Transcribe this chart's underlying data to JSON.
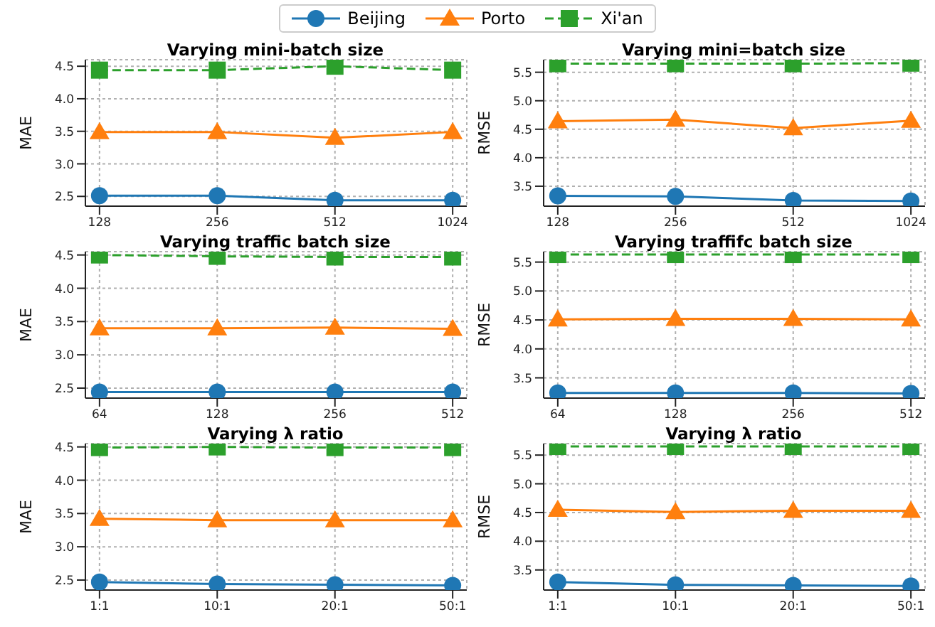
{
  "chart_data": [
    {
      "type": "line",
      "title": "Varying mini-batch size",
      "ylabel": "MAE",
      "categories": [
        "128",
        "256",
        "512",
        "1024"
      ],
      "ylim": [
        2.35,
        4.6
      ],
      "yticks": [
        2.5,
        {
          "value": 3,
          "label": "3.0"
        },
        3.5,
        {
          "value": 4,
          "label": "4.0"
        },
        4.5
      ],
      "grid": true,
      "legend": "top",
      "series": [
        {
          "name": "Beijing",
          "color": "#1f77b4",
          "marker": "circle",
          "line_style": "solid",
          "values": [
            2.51,
            2.51,
            2.44,
            2.44
          ]
        },
        {
          "name": "Porto",
          "color": "#ff7f0e",
          "marker": "triangle",
          "line_style": "solid",
          "values": [
            3.49,
            3.49,
            3.4,
            3.49
          ]
        },
        {
          "name": "Xi'an",
          "color": "#2ca02c",
          "marker": "square",
          "line_style": "dashed",
          "values": [
            4.44,
            4.44,
            4.5,
            4.44
          ]
        }
      ]
    },
    {
      "type": "line",
      "title": "Varying mini=batch size",
      "ylabel": "RMSE",
      "categories": [
        "128",
        "256",
        "512",
        "1024"
      ],
      "ylim": [
        3.15,
        5.72
      ],
      "yticks": [
        3.5,
        {
          "value": 4,
          "label": "4.0"
        },
        4.5,
        {
          "value": 5,
          "label": "5.0"
        },
        5.5
      ],
      "grid": true,
      "series": [
        {
          "color": "#1f77b4",
          "marker": "circle",
          "line_style": "solid",
          "values": [
            3.33,
            3.32,
            3.25,
            3.24
          ]
        },
        {
          "color": "#ff7f0e",
          "marker": "triangle",
          "line_style": "solid",
          "values": [
            4.64,
            4.67,
            4.52,
            4.65
          ]
        },
        {
          "color": "#2ca02c",
          "marker": "square",
          "line_style": "dashed",
          "values": [
            5.65,
            5.65,
            5.65,
            5.66
          ]
        }
      ]
    },
    {
      "type": "line",
      "title": "Varying traffic batch size",
      "ylabel": "MAE",
      "categories": [
        "64",
        "128",
        "256",
        "512"
      ],
      "ylim": [
        2.35,
        4.55
      ],
      "yticks": [
        2.5,
        {
          "value": 3,
          "label": "3.0"
        },
        3.5,
        {
          "value": 4,
          "label": "4.0"
        },
        4.5
      ],
      "grid": true,
      "series": [
        {
          "color": "#1f77b4",
          "marker": "circle",
          "line_style": "solid",
          "values": [
            2.44,
            2.44,
            2.44,
            2.44
          ]
        },
        {
          "color": "#ff7f0e",
          "marker": "triangle",
          "line_style": "solid",
          "values": [
            3.4,
            3.4,
            3.41,
            3.39
          ]
        },
        {
          "color": "#2ca02c",
          "marker": "square",
          "line_style": "dashed",
          "values": [
            4.5,
            4.48,
            4.47,
            4.47
          ]
        }
      ]
    },
    {
      "type": "line",
      "title": "Varying traffifc batch size",
      "ylabel": "RMSE",
      "categories": [
        "64",
        "128",
        "256",
        "512"
      ],
      "ylim": [
        3.15,
        5.68
      ],
      "yticks": [
        3.5,
        {
          "value": 4,
          "label": "4.0"
        },
        4.5,
        {
          "value": 5,
          "label": "5.0"
        },
        5.5
      ],
      "grid": true,
      "series": [
        {
          "color": "#1f77b4",
          "marker": "circle",
          "line_style": "solid",
          "values": [
            3.24,
            3.24,
            3.24,
            3.23
          ]
        },
        {
          "color": "#ff7f0e",
          "marker": "triangle",
          "line_style": "solid",
          "values": [
            4.51,
            4.52,
            4.52,
            4.51
          ]
        },
        {
          "color": "#2ca02c",
          "marker": "square",
          "line_style": "dashed",
          "values": [
            5.63,
            5.63,
            5.63,
            5.63
          ]
        }
      ]
    },
    {
      "type": "line",
      "title": "Varying λ ratio",
      "ylabel": "MAE",
      "categories": [
        "1:1",
        "10:1",
        "20:1",
        "50:1"
      ],
      "ylim": [
        2.35,
        4.55
      ],
      "yticks": [
        2.5,
        {
          "value": 3,
          "label": "3.0"
        },
        3.5,
        {
          "value": 4,
          "label": "4.0"
        },
        4.5
      ],
      "grid": true,
      "series": [
        {
          "color": "#1f77b4",
          "marker": "circle",
          "line_style": "solid",
          "values": [
            2.47,
            2.44,
            2.43,
            2.42
          ]
        },
        {
          "color": "#ff7f0e",
          "marker": "triangle",
          "line_style": "solid",
          "values": [
            3.42,
            3.4,
            3.4,
            3.4
          ]
        },
        {
          "color": "#2ca02c",
          "marker": "square",
          "line_style": "dashed",
          "values": [
            4.49,
            4.5,
            4.49,
            4.49
          ]
        }
      ]
    },
    {
      "type": "line",
      "title": "Varying λ ratio",
      "ylabel": "RMSE",
      "categories": [
        "1:1",
        "10:1",
        "20:1",
        "50:1"
      ],
      "ylim": [
        3.15,
        5.7
      ],
      "yticks": [
        3.5,
        {
          "value": 4,
          "label": "4.0"
        },
        4.5,
        {
          "value": 5,
          "label": "5.0"
        },
        5.5
      ],
      "grid": true,
      "series": [
        {
          "color": "#1f77b4",
          "marker": "circle",
          "line_style": "solid",
          "values": [
            3.29,
            3.24,
            3.23,
            3.22
          ]
        },
        {
          "color": "#ff7f0e",
          "marker": "triangle",
          "line_style": "solid",
          "values": [
            4.55,
            4.51,
            4.53,
            4.53
          ]
        },
        {
          "color": "#2ca02c",
          "marker": "square",
          "line_style": "dashed",
          "values": [
            5.65,
            5.65,
            5.65,
            5.65
          ]
        }
      ]
    }
  ]
}
